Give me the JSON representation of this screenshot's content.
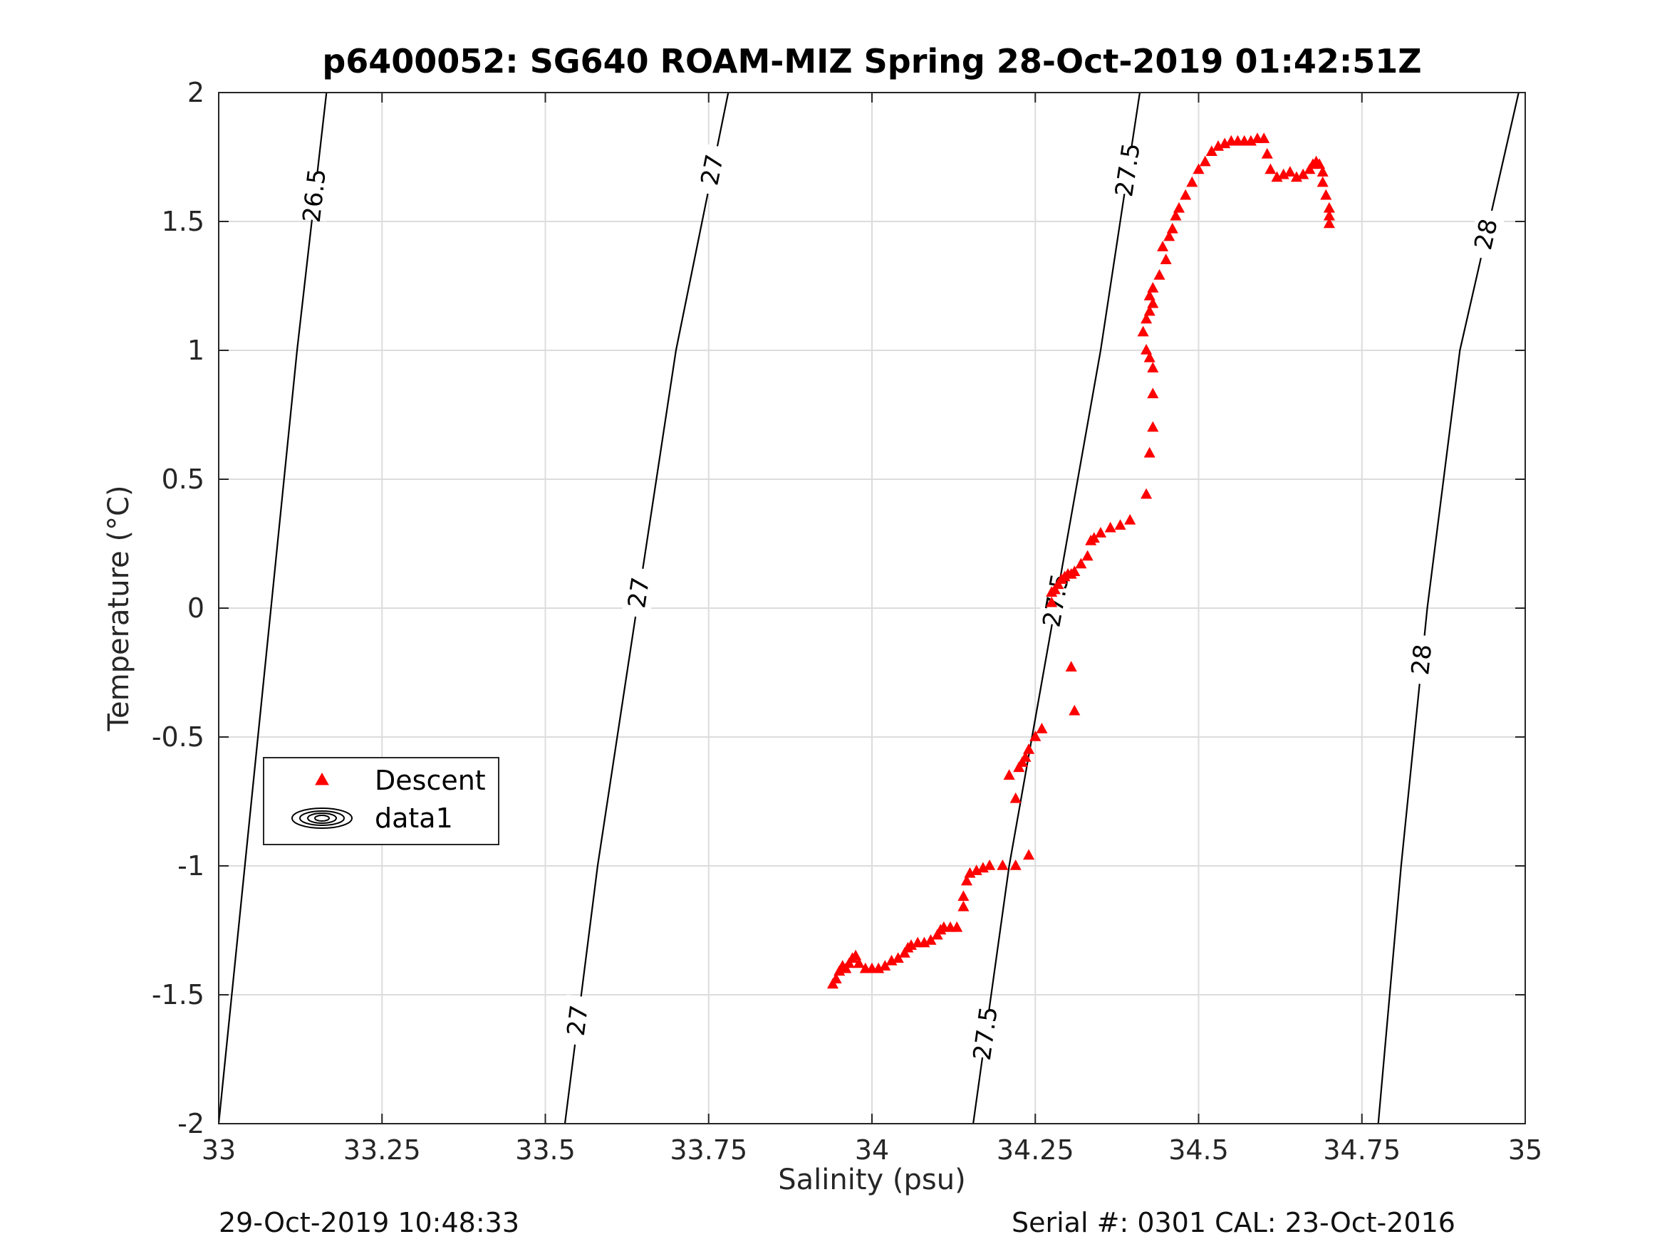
{
  "chart_data": {
    "type": "scatter",
    "title": "p6400052: SG640 ROAM-MIZ Spring 28-Oct-2019 01:42:51Z",
    "xlabel": "Salinity (psu)",
    "ylabel": "Temperature (°C)",
    "xlim": [
      33,
      35
    ],
    "ylim": [
      -2,
      2
    ],
    "x_ticks": [
      "33",
      "33.25",
      "33.5",
      "33.75",
      "34",
      "34.25",
      "34.5",
      "34.75",
      "35"
    ],
    "y_ticks": [
      "2",
      "1.5",
      "1",
      "0.5",
      "0",
      "-0.5",
      "-1",
      "-1.5",
      "-2"
    ],
    "grid": true,
    "legend": {
      "placement": "lower-left",
      "entries": [
        "Descent",
        "data1"
      ]
    },
    "series": [
      {
        "name": "Descent",
        "marker": "triangle",
        "color": "#ff0000",
        "x": [
          33.94,
          33.945,
          33.95,
          33.955,
          33.96,
          33.965,
          33.97,
          33.975,
          33.98,
          33.99,
          34.0,
          34.01,
          34.02,
          34.03,
          34.04,
          34.05,
          34.055,
          34.06,
          34.07,
          34.08,
          34.09,
          34.1,
          34.105,
          34.11,
          34.12,
          34.13,
          34.14,
          34.14,
          34.145,
          34.15,
          34.16,
          34.17,
          34.18,
          34.2,
          34.22,
          34.24,
          34.21,
          34.225,
          34.22,
          34.23,
          34.235,
          34.24,
          34.25,
          34.26,
          34.31,
          34.305,
          34.275,
          34.275,
          34.28,
          34.285,
          34.29,
          34.295,
          34.3,
          34.305,
          34.31,
          34.32,
          34.33,
          34.335,
          34.34,
          34.35,
          34.365,
          34.38,
          34.395,
          34.42,
          34.425,
          34.43,
          34.43,
          34.43,
          34.425,
          34.42,
          34.415,
          34.42,
          34.425,
          34.43,
          34.425,
          34.43,
          34.44,
          34.45,
          34.445,
          34.455,
          34.46,
          34.465,
          34.47,
          34.48,
          34.49,
          34.5,
          34.51,
          34.52,
          34.53,
          34.54,
          34.55,
          34.56,
          34.57,
          34.58,
          34.59,
          34.6,
          34.605,
          34.61,
          34.62,
          34.63,
          34.64,
          34.65,
          34.66,
          34.67,
          34.675,
          34.68,
          34.685,
          34.69,
          34.69,
          34.695,
          34.7,
          34.7,
          34.7
        ],
        "y": [
          -1.46,
          -1.44,
          -1.41,
          -1.39,
          -1.4,
          -1.38,
          -1.36,
          -1.35,
          -1.38,
          -1.4,
          -1.4,
          -1.4,
          -1.39,
          -1.37,
          -1.36,
          -1.34,
          -1.32,
          -1.31,
          -1.3,
          -1.3,
          -1.29,
          -1.27,
          -1.25,
          -1.24,
          -1.24,
          -1.24,
          -1.16,
          -1.12,
          -1.06,
          -1.03,
          -1.02,
          -1.01,
          -1.0,
          -1.0,
          -1.0,
          -0.96,
          -0.65,
          -0.62,
          -0.74,
          -0.6,
          -0.58,
          -0.55,
          -0.5,
          -0.47,
          -0.4,
          -0.23,
          0.02,
          0.06,
          0.07,
          0.09,
          0.11,
          0.12,
          0.13,
          0.13,
          0.14,
          0.17,
          0.2,
          0.26,
          0.27,
          0.29,
          0.31,
          0.32,
          0.34,
          0.44,
          0.6,
          0.7,
          0.83,
          0.93,
          0.97,
          1.0,
          1.07,
          1.12,
          1.15,
          1.18,
          1.21,
          1.24,
          1.29,
          1.35,
          1.4,
          1.44,
          1.47,
          1.52,
          1.55,
          1.6,
          1.65,
          1.7,
          1.73,
          1.77,
          1.79,
          1.8,
          1.81,
          1.81,
          1.81,
          1.81,
          1.82,
          1.82,
          1.76,
          1.7,
          1.67,
          1.68,
          1.69,
          1.67,
          1.68,
          1.7,
          1.72,
          1.73,
          1.72,
          1.69,
          1.65,
          1.6,
          1.55,
          1.52,
          1.49
        ]
      },
      {
        "name": "data1",
        "type": "contour",
        "color": "#000000",
        "levels": [
          {
            "value": "26.5",
            "x": [
              33.0,
              33.04,
              33.08,
              33.12,
              33.165
            ]
          },
          {
            "value": "27",
            "x": [
              33.53,
              33.58,
              33.64,
              33.7,
              33.78
            ]
          },
          {
            "value": "27.5",
            "x": [
              34.155,
              34.21,
              34.28,
              34.35,
              34.41
            ]
          },
          {
            "value": "28",
            "x": [
              34.775,
              34.81,
              34.85,
              34.9,
              34.99
            ]
          }
        ],
        "level_t": [
          -2,
          -1,
          0,
          1,
          2
        ]
      }
    ]
  },
  "footer": {
    "timestamp": "29-Oct-2019 10:48:33",
    "serial": "Serial #: 0301  CAL: 23-Oct-2016"
  }
}
